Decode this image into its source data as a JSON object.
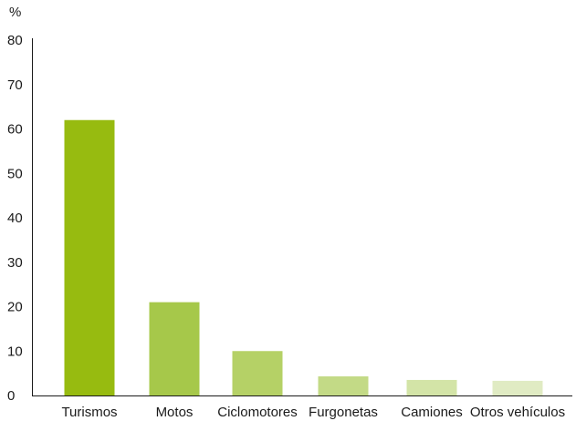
{
  "chart_data": {
    "type": "bar",
    "ylabel": "%",
    "ylim": [
      0,
      80
    ],
    "yticks": [
      0,
      10,
      20,
      30,
      40,
      50,
      60,
      70,
      80
    ],
    "categories": [
      "Turismos",
      "Motos",
      "Ciclomotores",
      "Furgonetas",
      "Camiones",
      "Otros vehículos"
    ],
    "values": [
      62,
      21,
      10,
      4.3,
      3.5,
      3.3
    ],
    "colors": [
      "#97bb10",
      "#a6c84a",
      "#b5d166",
      "#c3da86",
      "#d3e4a7",
      "#e0ebc3"
    ],
    "grid": false,
    "legend": "none"
  }
}
